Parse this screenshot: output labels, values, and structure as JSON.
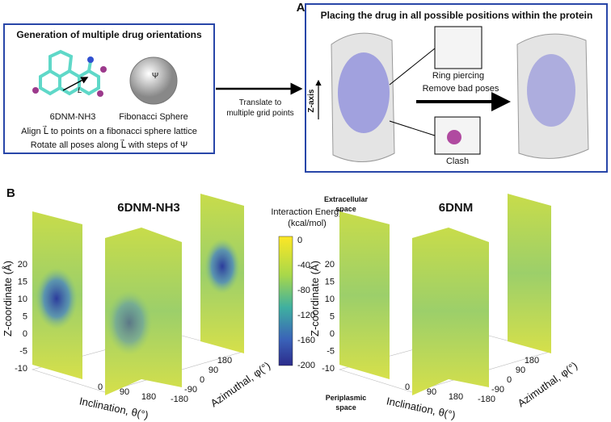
{
  "panel_a": {
    "label": "A",
    "left_box": {
      "title": "Generation of multiple drug orientations",
      "molecule_label": "6DNM-NH3",
      "sphere_label": "Fibonacci Sphere",
      "vector_label": "L",
      "angle_label": "Ψ",
      "line1": "Align L⃗ to points on a fibonacci sphere lattice",
      "line2": "Rotate all poses along L⃗ with steps of Ψ"
    },
    "arrow_label": [
      "Translate to",
      "multiple grid points"
    ],
    "right_box": {
      "title": "Placing the drug in all possible positions within the protein",
      "axis_label": "Z-axis",
      "inset_top": "Ring piercing",
      "inset_bottom": "Clash",
      "arrow_label": "Remove bad poses"
    }
  },
  "panel_b": {
    "label": "B",
    "colorbar": {
      "title": [
        "Interaction Energy",
        "(kcal/mol)"
      ],
      "ticks": [
        "0",
        "-40",
        "-80",
        "-120",
        "-160",
        "-200"
      ]
    },
    "top_label": [
      "Extracellular",
      "space"
    ],
    "bottom_label": [
      "Periplasmic",
      "space"
    ],
    "plots": [
      {
        "title": "6DNM-NH3",
        "y_label": "Z-coordinate (Å)",
        "y_ticks": [
          "20",
          "15",
          "10",
          "5",
          "0",
          "-5",
          "-10"
        ],
        "x_label": "Inclination, θ(°)",
        "x_ticks": [
          "0",
          "90",
          "180"
        ],
        "z_label": "Azimuthal, φ(°)",
        "z_ticks": [
          "-180",
          "-90",
          "0",
          "90",
          "180"
        ]
      },
      {
        "title": "6DNM",
        "y_label": "Z-coordinate (Å)",
        "y_ticks": [
          "20",
          "15",
          "10",
          "5",
          "0",
          "-5",
          "-10"
        ],
        "x_label": "Inclination, θ(°)",
        "x_ticks": [
          "0",
          "90",
          "180"
        ],
        "z_label": "Azimuthal, φ(°)",
        "z_ticks": [
          "-180",
          "-90",
          "0",
          "90",
          "180"
        ]
      }
    ]
  }
}
